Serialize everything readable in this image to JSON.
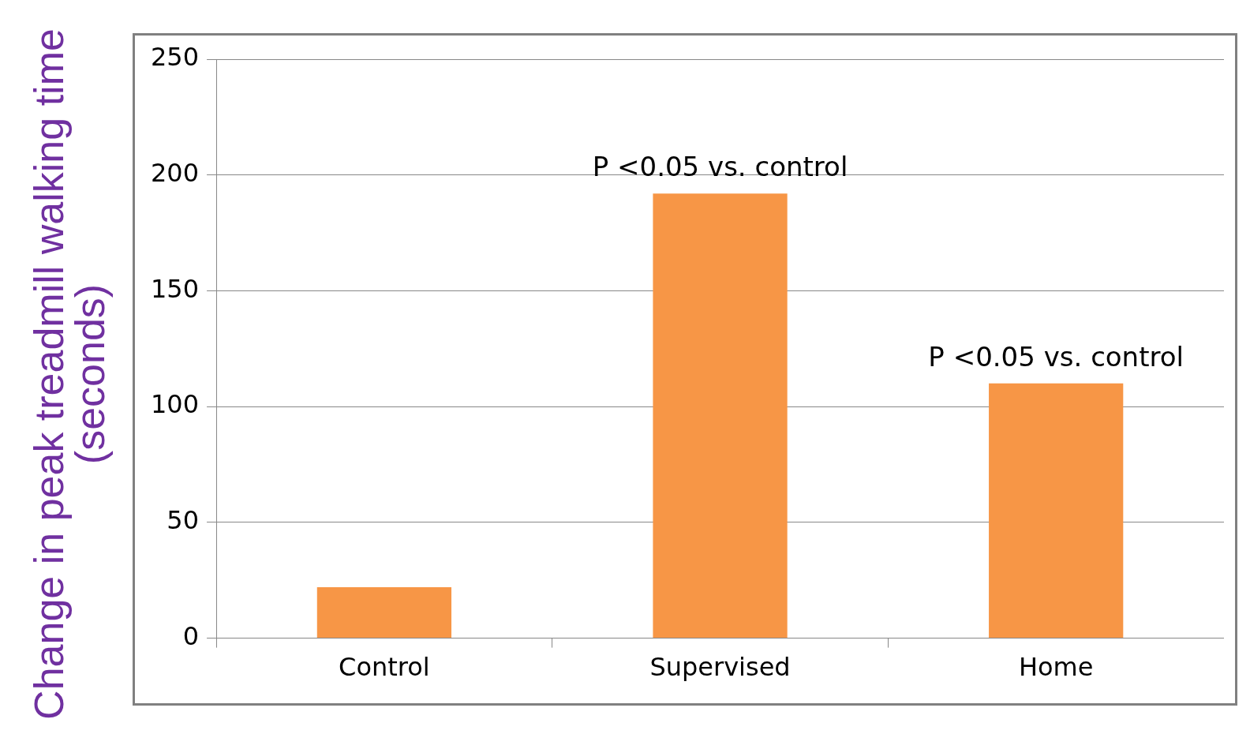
{
  "chart_data": {
    "type": "bar",
    "ylabel": "Change in peak treadmill walking time (seconds)",
    "categories": [
      "Control",
      "Supervised",
      "Home"
    ],
    "values": [
      22,
      192,
      110
    ],
    "color": "#f79646",
    "ylim": [
      0,
      250
    ],
    "yticks": [
      0,
      50,
      100,
      150,
      200,
      250
    ],
    "grid": "y",
    "legend": false,
    "annotations": [
      {
        "text": "P <0.05 vs. control",
        "x": "Supervised",
        "y": 192
      },
      {
        "text": "P <0.05 vs. control",
        "x": "Home",
        "y": 110
      }
    ]
  }
}
